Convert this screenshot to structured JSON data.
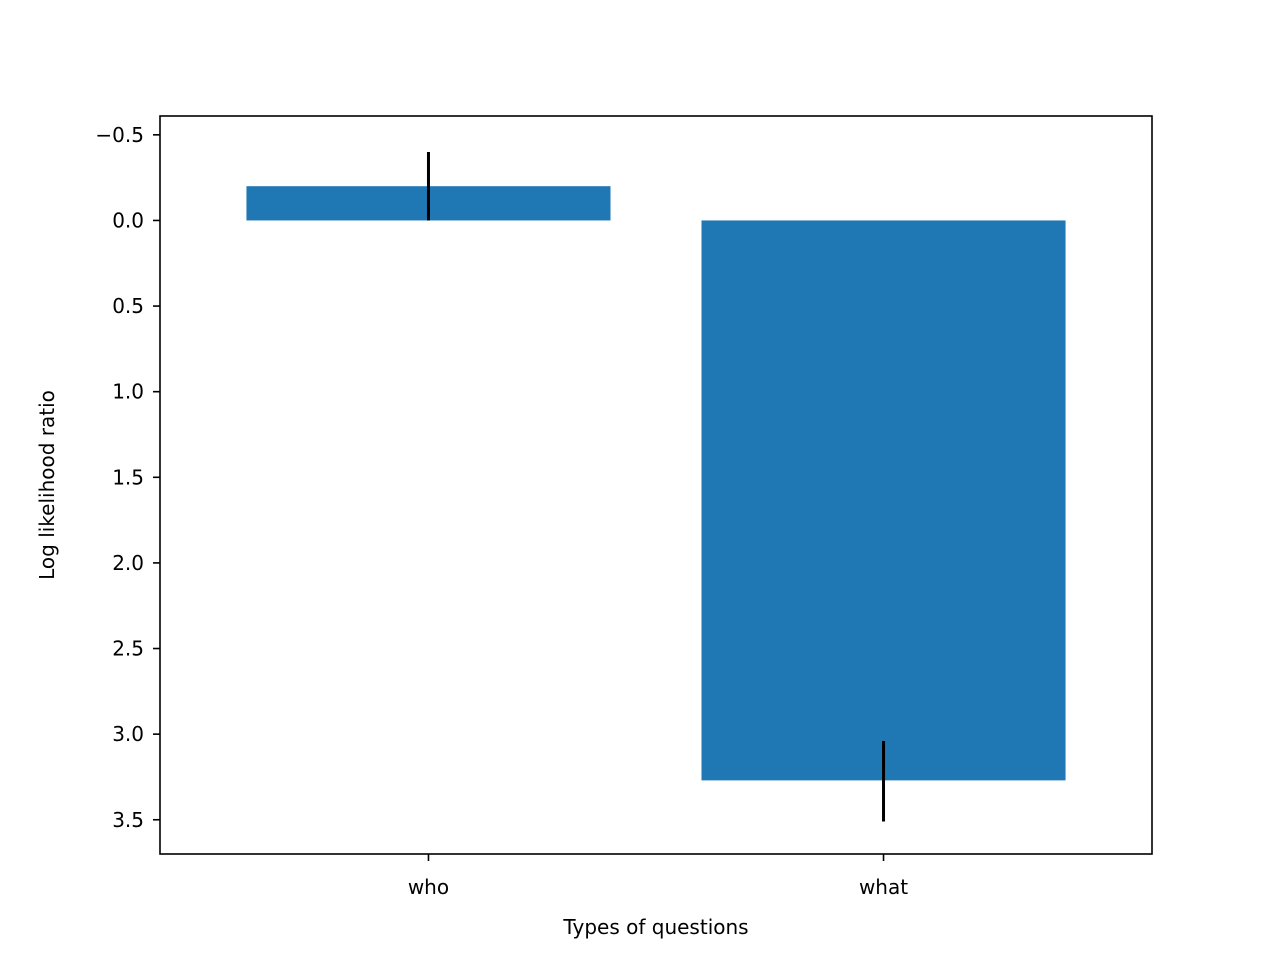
{
  "chart_data": {
    "type": "bar",
    "title": "",
    "xlabel": "Types of questions",
    "ylabel": "Log likelihood ratio",
    "categories": [
      "who",
      "what"
    ],
    "values": [
      -0.2,
      3.27
    ],
    "error_bars": [
      {
        "low": -0.4,
        "high": 0.0
      },
      {
        "low": 3.04,
        "high": 3.51
      }
    ],
    "ylim": [
      -0.61,
      3.7
    ],
    "y_inverted": true,
    "yticks": [
      -0.5,
      0.0,
      0.5,
      1.0,
      1.5,
      2.0,
      2.5,
      3.0,
      3.5
    ],
    "ytick_labels": [
      "−0.5",
      "0.0",
      "0.5",
      "1.0",
      "1.5",
      "2.0",
      "2.5",
      "3.0",
      "3.5"
    ],
    "grid": false,
    "legend": "none",
    "colors": {
      "bar": "#1f77b4",
      "error_bar": "#000000",
      "axes": "#000000"
    }
  }
}
